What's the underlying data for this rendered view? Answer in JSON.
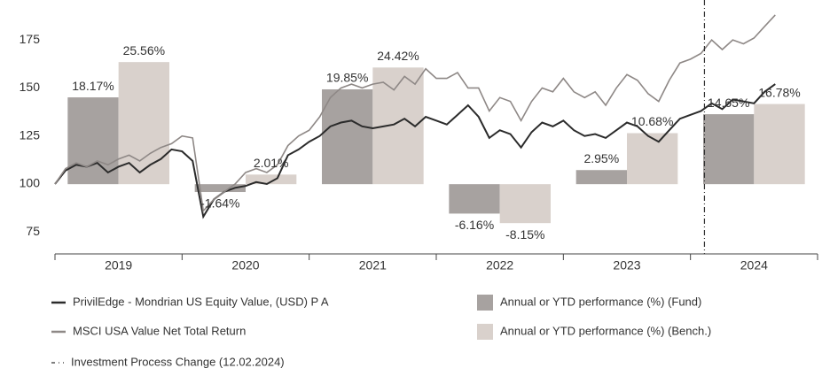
{
  "chart_data": {
    "type": "combo",
    "categories": [
      "2019",
      "2020",
      "2021",
      "2022",
      "2023",
      "2024"
    ],
    "x": [
      2019.0,
      2019.083,
      2019.167,
      2019.25,
      2019.333,
      2019.417,
      2019.5,
      2019.583,
      2019.667,
      2019.75,
      2019.833,
      2019.917,
      2020.0,
      2020.083,
      2020.167,
      2020.25,
      2020.333,
      2020.417,
      2020.5,
      2020.583,
      2020.667,
      2020.75,
      2020.833,
      2020.917,
      2021.0,
      2021.083,
      2021.167,
      2021.25,
      2021.333,
      2021.417,
      2021.5,
      2021.583,
      2021.667,
      2021.75,
      2021.833,
      2021.917,
      2022.0,
      2022.083,
      2022.167,
      2022.25,
      2022.333,
      2022.417,
      2022.5,
      2022.583,
      2022.667,
      2022.75,
      2022.833,
      2022.917,
      2023.0,
      2023.083,
      2023.167,
      2023.25,
      2023.333,
      2023.417,
      2023.5,
      2023.583,
      2023.667,
      2023.75,
      2023.833,
      2023.917,
      2024.0,
      2024.083,
      2024.167,
      2024.25,
      2024.333,
      2024.417,
      2024.5,
      2024.583,
      2024.667
    ],
    "series": [
      {
        "name": "PrivilEdge - Mondrian US Equity Value, (USD) P A",
        "type": "line",
        "axis": "y",
        "color": "#2b2b2b",
        "values": [
          100,
          107,
          110,
          109,
          111,
          106,
          109,
          111,
          106,
          110,
          113,
          118,
          117,
          112,
          83,
          92,
          96,
          98,
          99,
          101,
          100,
          103,
          115,
          118,
          122,
          125,
          130,
          132,
          133,
          130,
          129,
          130,
          131,
          134,
          130,
          135,
          133,
          131,
          136,
          141,
          135,
          124,
          128,
          126,
          119,
          127,
          132,
          130,
          133,
          128,
          125,
          126,
          124,
          128,
          132,
          130,
          125,
          122,
          128,
          134,
          136,
          138,
          142,
          139,
          144,
          143,
          142,
          148,
          152
        ]
      },
      {
        "name": "MSCI USA Value Net Total Return",
        "type": "line",
        "axis": "y",
        "color": "#8e8886",
        "values": [
          100,
          108,
          111,
          109,
          112,
          110,
          113,
          115,
          112,
          116,
          119,
          121,
          125,
          124,
          86,
          92,
          96,
          100,
          106,
          108,
          106,
          110,
          120,
          125,
          128,
          135,
          145,
          150,
          152,
          150,
          152,
          153,
          149,
          156,
          152,
          160,
          155,
          155,
          158,
          150,
          150,
          138,
          145,
          143,
          133,
          143,
          150,
          148,
          155,
          148,
          145,
          148,
          141,
          150,
          157,
          154,
          147,
          143,
          154,
          163,
          165,
          168,
          175,
          170,
          175,
          173,
          176,
          182,
          188
        ]
      },
      {
        "name": "Annual or YTD performance (%) (Fund)",
        "type": "bar",
        "axis": "y2",
        "color": "#a7a2a0",
        "values": [
          18.17,
          -1.64,
          19.85,
          -6.16,
          2.95,
          14.65
        ],
        "value_labels": [
          "18.17%",
          "-1.64%",
          "19.85%",
          "-6.16%",
          "2.95%",
          "14.65%"
        ]
      },
      {
        "name": "Annual or YTD performance (%) (Bench.)",
        "type": "bar",
        "axis": "y2",
        "color": "#d9d1cc",
        "values": [
          25.56,
          2.01,
          24.42,
          -8.15,
          10.68,
          16.78
        ],
        "value_labels": [
          "25.56%",
          "2.01%",
          "24.42%",
          "-8.15%",
          "10.68%",
          "16.78%"
        ]
      }
    ],
    "xlim": [
      2019,
      2025
    ],
    "xticks": [
      2019,
      2020,
      2021,
      2022,
      2023,
      2024,
      2025
    ],
    "ylim": [
      63.6,
      191.2
    ],
    "yticks": [
      75,
      100,
      125,
      150,
      175
    ],
    "y2lim": [
      -14.6,
      36.7
    ],
    "event_line": {
      "x": 2024.11,
      "label": "Investment Process Change (12.02.2024)",
      "color": "#333333"
    }
  }
}
